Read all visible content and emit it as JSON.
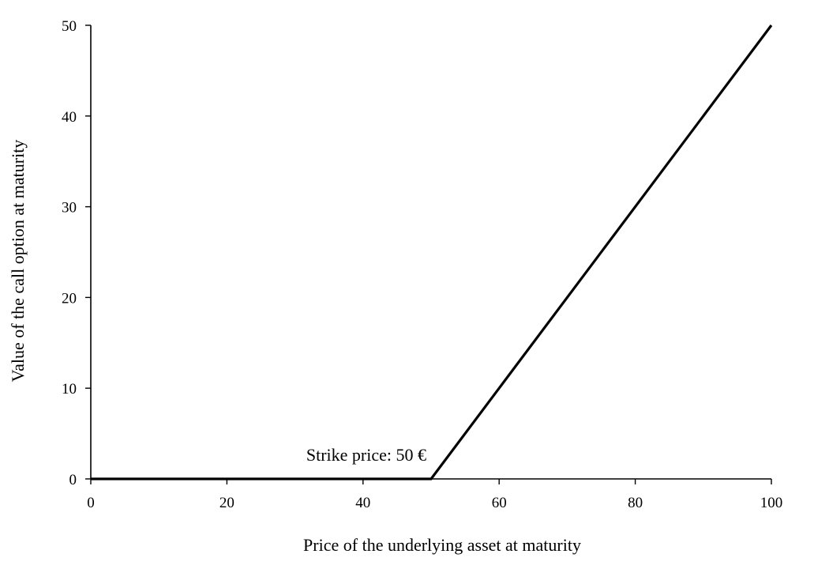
{
  "chart_data": {
    "type": "line",
    "title": "",
    "xlabel": "Price of the underlying asset at maturity",
    "ylabel": "Value of the call option at maturity",
    "xlim": [
      0,
      100
    ],
    "ylim": [
      0,
      50
    ],
    "xticks": [
      0,
      20,
      40,
      60,
      80,
      100
    ],
    "yticks": [
      0,
      10,
      20,
      30,
      40,
      50
    ],
    "xtick_labels": [
      "0",
      "20",
      "40",
      "60",
      "80",
      "100"
    ],
    "ytick_labels": [
      "0",
      "10",
      "20",
      "30",
      "40",
      "50"
    ],
    "grid": false,
    "legend": "none",
    "series": [
      {
        "x": [
          0,
          50,
          100
        ],
        "y": [
          0,
          0,
          50
        ],
        "color": "#000000"
      }
    ],
    "annotations": [
      {
        "text": "Strike price:  50 €",
        "x": 50,
        "y": 0
      }
    ]
  }
}
